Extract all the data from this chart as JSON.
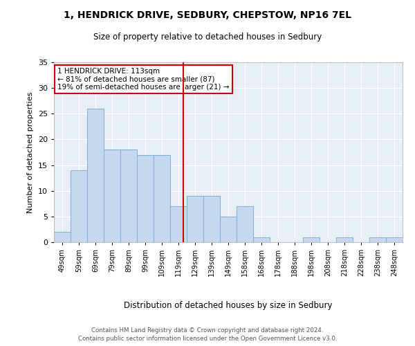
{
  "title1": "1, HENDRICK DRIVE, SEDBURY, CHEPSTOW, NP16 7EL",
  "title2": "Size of property relative to detached houses in Sedbury",
  "xlabel": "Distribution of detached houses by size in Sedbury",
  "ylabel": "Number of detached properties",
  "categories": [
    "49sqm",
    "59sqm",
    "69sqm",
    "79sqm",
    "89sqm",
    "99sqm",
    "109sqm",
    "119sqm",
    "129sqm",
    "139sqm",
    "149sqm",
    "158sqm",
    "168sqm",
    "178sqm",
    "188sqm",
    "198sqm",
    "208sqm",
    "218sqm",
    "228sqm",
    "238sqm",
    "248sqm"
  ],
  "values": [
    2,
    14,
    26,
    18,
    18,
    17,
    17,
    7,
    9,
    9,
    5,
    7,
    1,
    0,
    0,
    1,
    0,
    1,
    0,
    1,
    1
  ],
  "bar_color": "#c5d8f0",
  "bar_edge_color": "#7fafd4",
  "vline_x": 7.3,
  "vline_color": "#cc0000",
  "annotation_line1": "1 HENDRICK DRIVE: 113sqm",
  "annotation_line2": "← 81% of detached houses are smaller (87)",
  "annotation_line3": "19% of semi-detached houses are larger (21) →",
  "annotation_box_color": "#cc0000",
  "ylim": [
    0,
    35
  ],
  "yticks": [
    0,
    5,
    10,
    15,
    20,
    25,
    30,
    35
  ],
  "background_color": "#e8eef6",
  "footer1": "Contains HM Land Registry data © Crown copyright and database right 2024.",
  "footer2": "Contains public sector information licensed under the Open Government Licence v3.0."
}
